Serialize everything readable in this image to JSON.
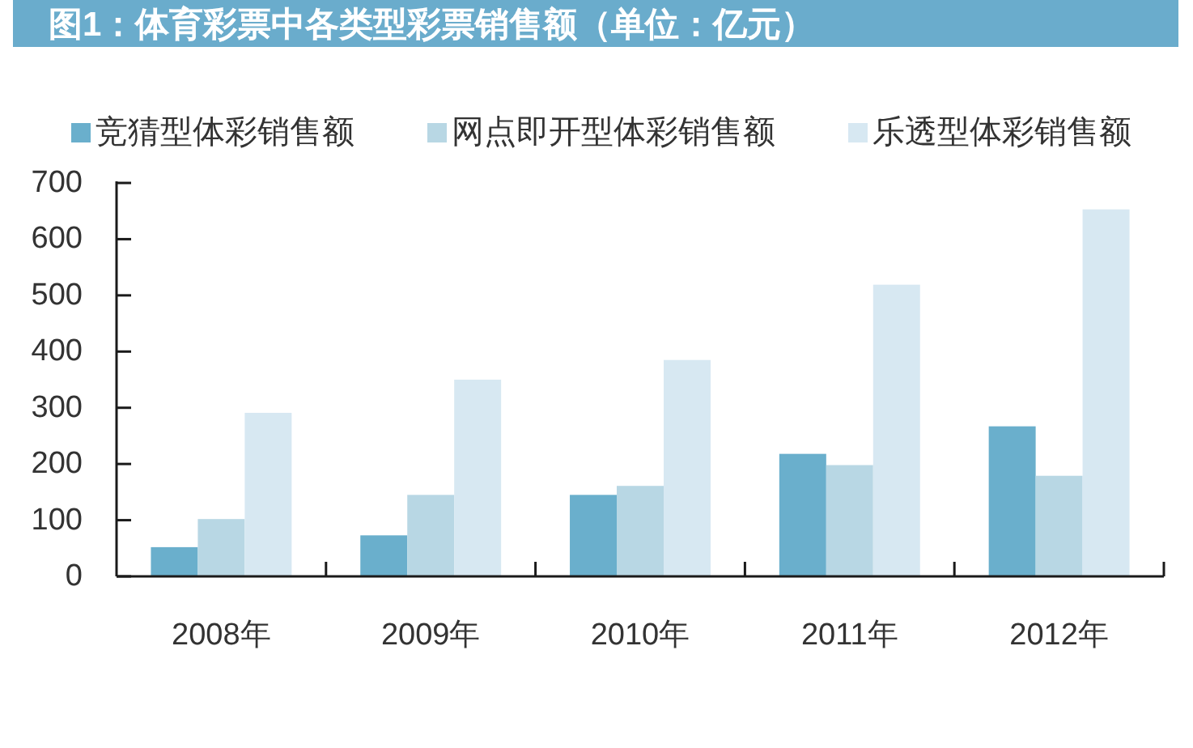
{
  "chart_data": {
    "type": "bar",
    "title": "图1：体育彩票中各类型彩票销售额（单位：亿元）",
    "categories": [
      "2008年",
      "2009年",
      "2010年",
      "2011年",
      "2012年"
    ],
    "series": [
      {
        "name": "竞猜型体彩销售额",
        "color": "#6aafcc",
        "values": [
          52,
          73,
          145,
          218,
          267
        ]
      },
      {
        "name": "网点即开型体彩销售额",
        "color": "#b8d7e4",
        "values": [
          102,
          145,
          161,
          198,
          179
        ]
      },
      {
        "name": "乐透型体彩销售额",
        "color": "#d7e8f2",
        "values": [
          291,
          350,
          385,
          519,
          653
        ]
      }
    ],
    "ylim": [
      0,
      700
    ],
    "yticks": [
      0,
      100,
      200,
      300,
      400,
      500,
      600,
      700
    ],
    "legend": "top",
    "grid": false
  }
}
